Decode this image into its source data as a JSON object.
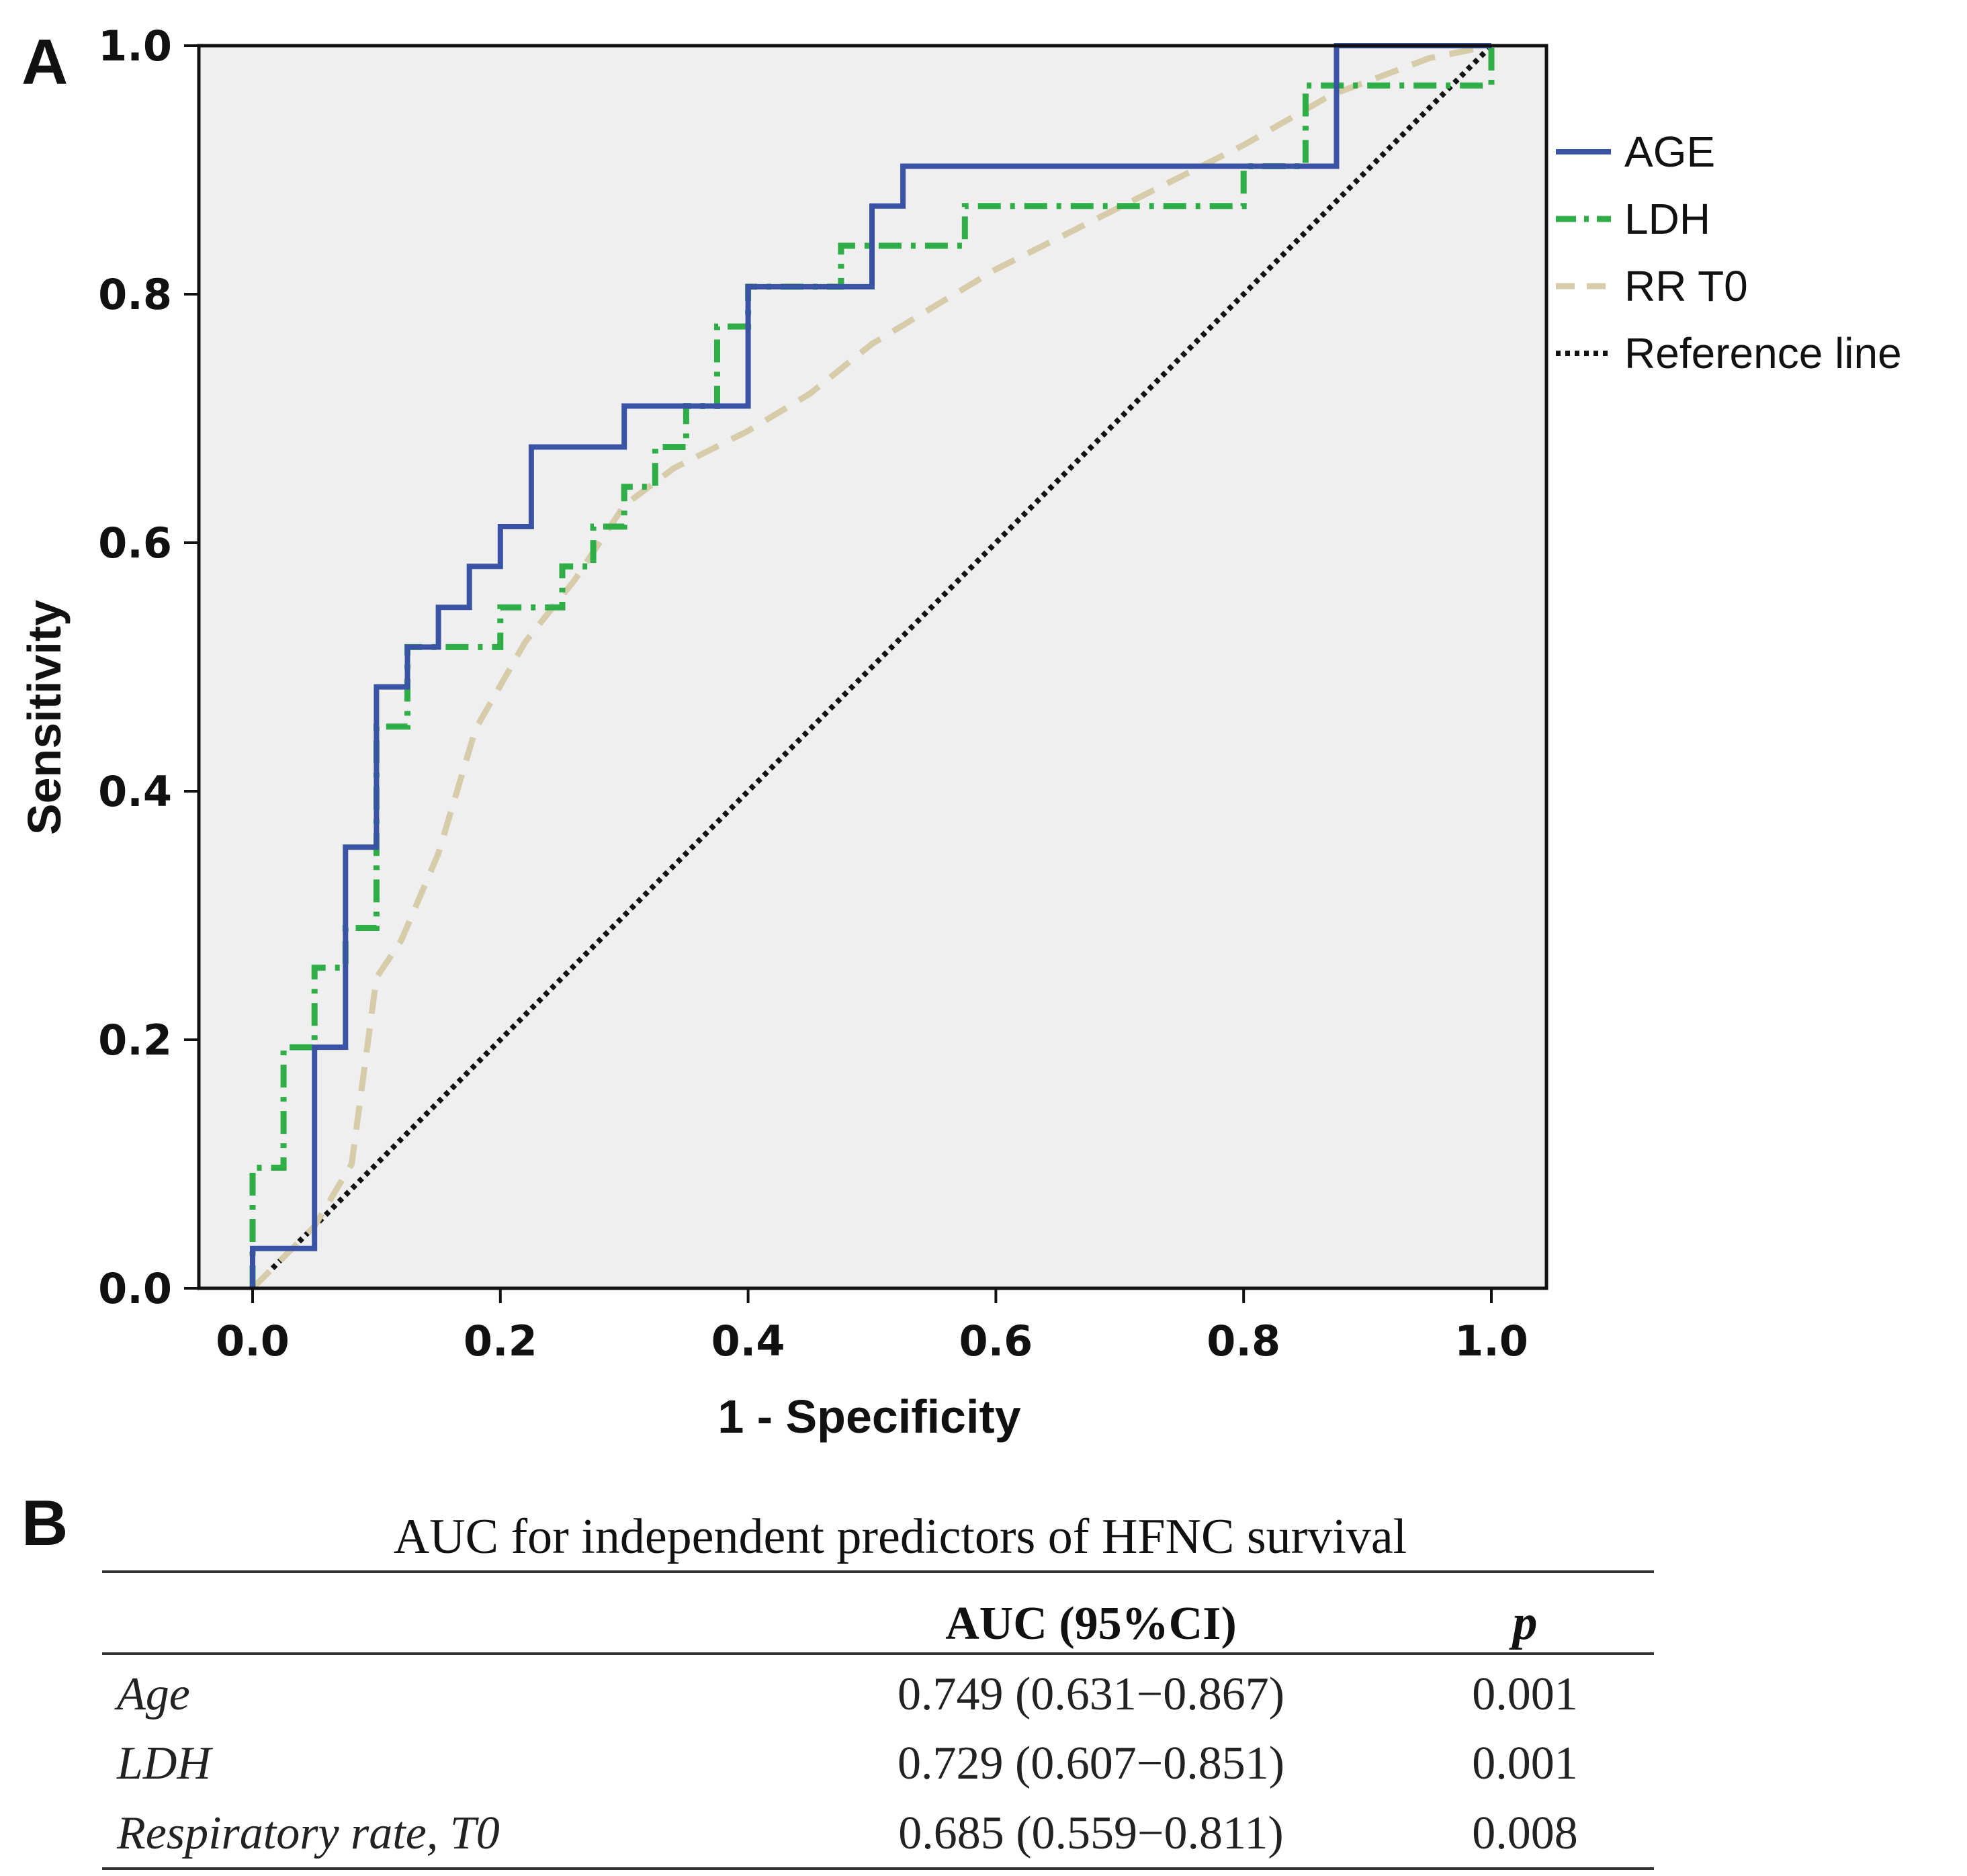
{
  "panel_a_label": "A",
  "panel_b_label": "B",
  "chart_data": {
    "type": "line",
    "title": "",
    "xlabel": "1 - Specificity",
    "ylabel": "Sensitivity",
    "xlim": [
      0,
      1
    ],
    "ylim": [
      0,
      1
    ],
    "x_ticks": [
      "0.0",
      "0.2",
      "0.4",
      "0.6",
      "0.8",
      "1.0"
    ],
    "y_ticks": [
      "0.0",
      "0.2",
      "0.4",
      "0.6",
      "0.8",
      "1.0"
    ],
    "grid": false,
    "background": "#efefef",
    "legend_position": "right",
    "series": [
      {
        "name": "AGE",
        "color": "#3a53a4",
        "style": "solid",
        "points": [
          [
            0,
            0
          ],
          [
            0,
            0.032
          ],
          [
            0.05,
            0.032
          ],
          [
            0.05,
            0.194
          ],
          [
            0.075,
            0.194
          ],
          [
            0.075,
            0.355
          ],
          [
            0.1,
            0.355
          ],
          [
            0.1,
            0.484
          ],
          [
            0.125,
            0.484
          ],
          [
            0.125,
            0.516
          ],
          [
            0.15,
            0.516
          ],
          [
            0.15,
            0.548
          ],
          [
            0.175,
            0.548
          ],
          [
            0.175,
            0.581
          ],
          [
            0.2,
            0.581
          ],
          [
            0.2,
            0.613
          ],
          [
            0.225,
            0.613
          ],
          [
            0.225,
            0.677
          ],
          [
            0.3,
            0.677
          ],
          [
            0.3,
            0.71
          ],
          [
            0.4,
            0.71
          ],
          [
            0.4,
            0.806
          ],
          [
            0.5,
            0.806
          ],
          [
            0.5,
            0.871
          ],
          [
            0.525,
            0.871
          ],
          [
            0.525,
            0.903
          ],
          [
            0.875,
            0.903
          ],
          [
            0.875,
            1
          ],
          [
            1,
            1
          ]
        ]
      },
      {
        "name": "LDH",
        "color": "#2fae48",
        "style": "dash-dot",
        "points": [
          [
            0,
            0
          ],
          [
            0,
            0.032
          ],
          [
            0,
            0.065
          ],
          [
            0,
            0.097
          ],
          [
            0.025,
            0.097
          ],
          [
            0.025,
            0.194
          ],
          [
            0.05,
            0.194
          ],
          [
            0.05,
            0.258
          ],
          [
            0.075,
            0.258
          ],
          [
            0.075,
            0.29
          ],
          [
            0.1,
            0.29
          ],
          [
            0.1,
            0.452
          ],
          [
            0.125,
            0.452
          ],
          [
            0.125,
            0.516
          ],
          [
            0.2,
            0.516
          ],
          [
            0.2,
            0.548
          ],
          [
            0.25,
            0.548
          ],
          [
            0.25,
            0.581
          ],
          [
            0.275,
            0.581
          ],
          [
            0.275,
            0.613
          ],
          [
            0.3,
            0.613
          ],
          [
            0.3,
            0.645
          ],
          [
            0.325,
            0.645
          ],
          [
            0.325,
            0.677
          ],
          [
            0.35,
            0.677
          ],
          [
            0.35,
            0.71
          ],
          [
            0.375,
            0.71
          ],
          [
            0.375,
            0.774
          ],
          [
            0.4,
            0.774
          ],
          [
            0.4,
            0.806
          ],
          [
            0.475,
            0.806
          ],
          [
            0.475,
            0.839
          ],
          [
            0.575,
            0.839
          ],
          [
            0.575,
            0.871
          ],
          [
            0.8,
            0.871
          ],
          [
            0.8,
            0.903
          ],
          [
            0.85,
            0.903
          ],
          [
            0.85,
            0.968
          ],
          [
            1,
            0.968
          ],
          [
            1,
            1
          ]
        ]
      },
      {
        "name": "RR T0",
        "color": "#d6ccaa",
        "style": "dashed",
        "points": [
          [
            0,
            0
          ],
          [
            0.05,
            0.05
          ],
          [
            0.08,
            0.1
          ],
          [
            0.1,
            0.25
          ],
          [
            0.12,
            0.28
          ],
          [
            0.15,
            0.35
          ],
          [
            0.18,
            0.45
          ],
          [
            0.22,
            0.52
          ],
          [
            0.26,
            0.57
          ],
          [
            0.3,
            0.63
          ],
          [
            0.34,
            0.66
          ],
          [
            0.4,
            0.69
          ],
          [
            0.45,
            0.72
          ],
          [
            0.5,
            0.76
          ],
          [
            0.6,
            0.82
          ],
          [
            0.7,
            0.87
          ],
          [
            0.8,
            0.92
          ],
          [
            0.87,
            0.96
          ],
          [
            0.95,
            0.99
          ],
          [
            1,
            1
          ]
        ]
      },
      {
        "name": "Reference line",
        "color": "#111111",
        "style": "dotted",
        "points": [
          [
            0,
            0
          ],
          [
            1,
            1
          ]
        ]
      }
    ]
  },
  "table": {
    "title": "AUC for independent predictors of HFNC survival",
    "columns": [
      "",
      "AUC (95%CI)",
      "p"
    ],
    "rows": [
      {
        "label": "Age",
        "auc": "0.749 (0.631−0.867)",
        "p": "0.001"
      },
      {
        "label": "LDH",
        "auc": "0.729 (0.607−0.851)",
        "p": "0.001"
      },
      {
        "label": "Respiratory rate, T0",
        "auc": "0.685 (0.559−0.811)",
        "p": "0.008"
      }
    ]
  }
}
